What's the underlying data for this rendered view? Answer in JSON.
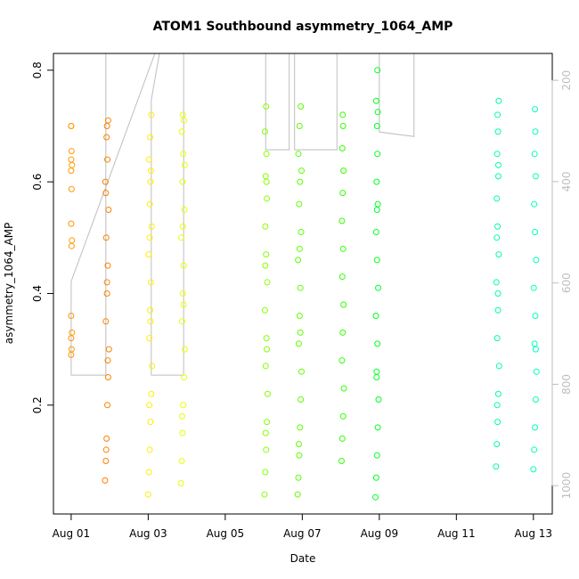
{
  "chart_data": {
    "type": "scatter",
    "title": "ATOM1 Southbound asymmetry_1064_AMP",
    "x_label": "Date",
    "y_label": "asymmetry_1064_AMP",
    "xlim": [
      -0.46,
      12.49
    ],
    "ylim": [
      0.005,
      0.83
    ],
    "y2lim": [
      1056,
      147
    ],
    "xticks": [
      {
        "value": 0,
        "label": "Aug 01"
      },
      {
        "value": 2,
        "label": "Aug 03"
      },
      {
        "value": 4,
        "label": "Aug 05"
      },
      {
        "value": 6,
        "label": "Aug 07"
      },
      {
        "value": 8,
        "label": "Aug 09"
      },
      {
        "value": 10,
        "label": "Aug 11"
      },
      {
        "value": 12,
        "label": "Aug 13"
      }
    ],
    "yticks": [
      0.2,
      0.4,
      0.6,
      0.8
    ],
    "y2ticks": [
      200,
      400,
      600,
      800,
      1000
    ],
    "series": [
      {
        "color": "#ff9900",
        "x": [
          0.0,
          0.0,
          0.01,
          0.0,
          0.02,
          0.0,
          0.01,
          0.0,
          0.02,
          0.01,
          0.0,
          0.02,
          0.0,
          0.01,
          0.0
        ],
        "values": [
          0.7,
          0.7,
          0.655,
          0.64,
          0.63,
          0.62,
          0.587,
          0.525,
          0.495,
          0.485,
          0.36,
          0.33,
          0.32,
          0.3,
          0.29
        ]
      },
      {
        "color": "#ff8000",
        "x": [
          0.88,
          0.9,
          0.92,
          0.94,
          0.96,
          0.98,
          0.9,
          0.93,
          0.95,
          0.91,
          0.97,
          0.89,
          0.94,
          0.92,
          0.96,
          0.93,
          0.91,
          0.95,
          0.93,
          0.9
        ],
        "values": [
          0.065,
          0.1,
          0.14,
          0.2,
          0.25,
          0.3,
          0.35,
          0.4,
          0.45,
          0.5,
          0.55,
          0.6,
          0.64,
          0.68,
          0.71,
          0.7,
          0.12,
          0.28,
          0.42,
          0.58
        ]
      },
      {
        "color": "#ffee00",
        "x": [
          2.0,
          2.02,
          2.04,
          2.06,
          2.08,
          2.1,
          2.03,
          2.05,
          2.07,
          2.01,
          2.09,
          2.04,
          2.06,
          2.02,
          2.05,
          2.08,
          2.03,
          2.06,
          2.04,
          2.07
        ],
        "values": [
          0.04,
          0.08,
          0.12,
          0.17,
          0.22,
          0.27,
          0.32,
          0.37,
          0.42,
          0.47,
          0.52,
          0.56,
          0.6,
          0.64,
          0.68,
          0.72,
          0.2,
          0.35,
          0.5,
          0.62
        ]
      },
      {
        "color": "#e8ff00",
        "x": [
          2.85,
          2.87,
          2.89,
          2.91,
          2.93,
          2.95,
          2.88,
          2.9,
          2.92,
          2.86,
          2.94,
          2.89,
          2.91,
          2.87,
          2.9,
          2.93,
          2.88,
          2.92,
          2.9,
          2.95
        ],
        "values": [
          0.06,
          0.1,
          0.15,
          0.2,
          0.25,
          0.3,
          0.35,
          0.4,
          0.45,
          0.5,
          0.55,
          0.6,
          0.65,
          0.69,
          0.72,
          0.71,
          0.18,
          0.38,
          0.52,
          0.63
        ]
      },
      {
        "color": "#88ff00",
        "x": [
          5.02,
          5.04,
          5.06,
          5.08,
          5.1,
          5.05,
          5.07,
          5.03,
          5.09,
          5.06,
          5.04,
          5.08,
          5.05,
          5.07,
          5.03,
          5.06,
          5.05,
          5.08,
          5.04,
          5.07
        ],
        "values": [
          0.04,
          0.08,
          0.12,
          0.17,
          0.22,
          0.27,
          0.32,
          0.37,
          0.42,
          0.47,
          0.52,
          0.57,
          0.61,
          0.65,
          0.69,
          0.735,
          0.15,
          0.3,
          0.45,
          0.6
        ]
      },
      {
        "color": "#5cff00",
        "x": [
          5.88,
          5.9,
          5.92,
          5.94,
          5.96,
          5.98,
          5.91,
          5.93,
          5.95,
          5.89,
          5.97,
          5.92,
          5.94,
          5.9,
          5.93,
          5.96,
          5.91,
          5.95,
          5.93,
          5.98
        ],
        "values": [
          0.04,
          0.07,
          0.11,
          0.16,
          0.21,
          0.26,
          0.31,
          0.36,
          0.41,
          0.46,
          0.51,
          0.56,
          0.6,
          0.65,
          0.7,
          0.735,
          0.13,
          0.33,
          0.48,
          0.62
        ]
      },
      {
        "color": "#33ff00",
        "x": [
          7.02,
          7.04,
          7.06,
          7.08,
          7.03,
          7.05,
          7.07,
          7.04,
          7.06,
          7.03,
          7.05,
          7.07,
          7.04,
          7.06,
          7.05
        ],
        "values": [
          0.1,
          0.14,
          0.18,
          0.23,
          0.28,
          0.33,
          0.38,
          0.43,
          0.48,
          0.53,
          0.58,
          0.62,
          0.66,
          0.7,
          0.72
        ]
      },
      {
        "color": "#00ff22",
        "x": [
          7.9,
          7.92,
          7.94,
          7.96,
          7.98,
          7.93,
          7.95,
          7.91,
          7.97,
          7.94,
          7.92,
          7.96,
          7.93,
          7.95,
          7.94,
          7.96,
          7.92,
          7.95,
          7.93,
          7.94
        ],
        "values": [
          0.035,
          0.07,
          0.11,
          0.16,
          0.21,
          0.26,
          0.31,
          0.36,
          0.41,
          0.46,
          0.51,
          0.56,
          0.6,
          0.65,
          0.7,
          0.725,
          0.745,
          0.8,
          0.25,
          0.55
        ]
      },
      {
        "color": "#00ffa0",
        "x": [
          11.03,
          11.05,
          11.07,
          11.09,
          11.11,
          11.06,
          11.08,
          11.04,
          11.1,
          11.07,
          11.05,
          11.09,
          11.06,
          11.08,
          11.07,
          11.1,
          11.06,
          11.08,
          11.05,
          11.09
        ],
        "values": [
          0.09,
          0.13,
          0.17,
          0.22,
          0.27,
          0.32,
          0.37,
          0.42,
          0.47,
          0.52,
          0.57,
          0.61,
          0.65,
          0.69,
          0.72,
          0.745,
          0.2,
          0.4,
          0.5,
          0.63
        ]
      },
      {
        "color": "#00ffbb",
        "x": [
          12.0,
          12.02,
          12.04,
          12.06,
          12.08,
          12.03,
          12.05,
          12.01,
          12.07,
          12.04,
          12.02,
          12.06,
          12.03,
          12.05,
          12.04,
          12.06
        ],
        "values": [
          0.085,
          0.12,
          0.16,
          0.21,
          0.26,
          0.31,
          0.36,
          0.41,
          0.46,
          0.51,
          0.56,
          0.61,
          0.65,
          0.69,
          0.73,
          0.3
        ]
      },
      {
        "color": "#bebebe",
        "axis": "y2",
        "x": [
          0.9,
          0.9,
          0,
          0,
          2.4,
          2.08,
          2.08,
          2.92,
          2.92,
          5.0,
          5.05,
          5.05,
          5.66,
          5.66,
          5.8,
          5.8,
          6.9,
          6.9,
          7.0,
          7.0,
          8.0,
          8.0,
          8.9,
          8.9,
          11.0,
          11.0,
          12.0
        ],
        "values": [
          100,
          782,
          782,
          597,
          100,
          239,
          782,
          782,
          100,
          100,
          100,
          337,
          337,
          100,
          100,
          337,
          337,
          100,
          100,
          100,
          100,
          302,
          311,
          100,
          100,
          100,
          100
        ]
      }
    ]
  }
}
